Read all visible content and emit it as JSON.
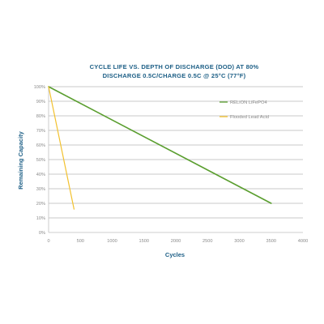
{
  "chart_data": {
    "type": "line",
    "title_lines": [
      "CYCLE LIFE VS. DEPTH OF DISCHARGE (DOD) AT 80%",
      "DISCHARGE 0.5C/CHARGE 0.5C @ 25°C (77°F)"
    ],
    "xlabel": "Cycles",
    "ylabel": "Remaining Capacity",
    "xlim": [
      0,
      4000
    ],
    "ylim": [
      0,
      100
    ],
    "x_ticks": [
      {
        "value": 0,
        "label": "0"
      },
      {
        "value": 500,
        "label": "500"
      },
      {
        "value": 1000,
        "label": "1000"
      },
      {
        "value": 1500,
        "label": "1500"
      },
      {
        "value": 2000,
        "label": "2000"
      },
      {
        "value": 2500,
        "label": "2500"
      },
      {
        "value": 3000,
        "label": "3000"
      },
      {
        "value": 3500,
        "label": "3500"
      },
      {
        "value": 4000,
        "label": "4000"
      }
    ],
    "y_ticks": [
      {
        "value": 0,
        "label": "0%"
      },
      {
        "value": 10,
        "label": "10%"
      },
      {
        "value": 20,
        "label": "20%"
      },
      {
        "value": 30,
        "label": "30%"
      },
      {
        "value": 40,
        "label": "40%"
      },
      {
        "value": 50,
        "label": "50%"
      },
      {
        "value": 60,
        "label": "60%"
      },
      {
        "value": 70,
        "label": "70%"
      },
      {
        "value": 80,
        "label": "80%"
      },
      {
        "value": 90,
        "label": "90%"
      },
      {
        "value": 100,
        "label": "100%"
      }
    ],
    "grid": "horizontal",
    "legend_position": "right",
    "series": [
      {
        "name": "RELiON LiFePO4",
        "color": "#5a9e2f",
        "x": [
          0,
          3500
        ],
        "y": [
          100,
          20
        ]
      },
      {
        "name": "Flooded Lead Acid",
        "color": "#f2c12e",
        "x": [
          0,
          400
        ],
        "y": [
          100,
          16
        ]
      }
    ]
  }
}
